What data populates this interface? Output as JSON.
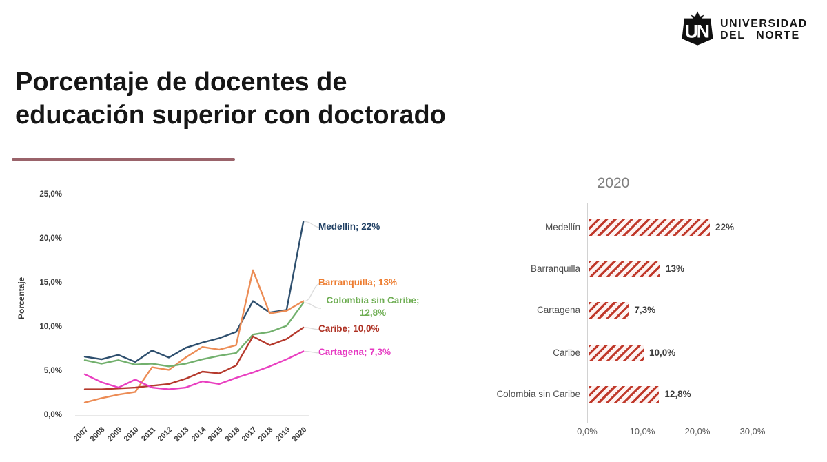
{
  "logo": {
    "monogram": "UN",
    "name_line1": "UNIVERSIDAD",
    "name_line2": "DEL NORTE"
  },
  "title": {
    "line1": "Porcentaje de docentes de",
    "line2": "educación superior con doctorado"
  },
  "accent_rule_color": "#9a636a",
  "chart_data": [
    {
      "type": "line",
      "name": "evolucion-doctorado",
      "ylabel": "Porcentaje",
      "ylim": [
        0,
        25
      ],
      "yticks": [
        "0,0%",
        "5,0%",
        "10,0%",
        "15,0%",
        "20,0%",
        "25,0%"
      ],
      "x": [
        2007,
        2008,
        2009,
        2010,
        2011,
        2012,
        2013,
        2014,
        2015,
        2016,
        2017,
        2018,
        2019,
        2020
      ],
      "grid": false,
      "series": [
        {
          "key": "medellin",
          "name": "Medellín",
          "label": "Medellín; 22%",
          "color": "#2e4f6e",
          "label_color": "#1f3f63",
          "values": [
            6.7,
            6.4,
            6.9,
            6.1,
            7.4,
            6.6,
            7.7,
            8.3,
            8.8,
            9.5,
            13.0,
            11.7,
            12.0,
            22.0
          ]
        },
        {
          "key": "barranquilla",
          "name": "Barranquilla",
          "label": "Barranquilla; 13%",
          "color": "#ec8c55",
          "label_color": "#ed7d31",
          "values": [
            1.5,
            2.0,
            2.4,
            2.7,
            5.5,
            5.2,
            6.6,
            7.8,
            7.5,
            8.0,
            16.5,
            11.6,
            11.9,
            13.0
          ]
        },
        {
          "key": "colombia-sin-caribe",
          "name": "Colombia sin Caribe",
          "label": "Colombia sin Caribe; 12,8%",
          "label_line1": "Colombia sin Caribe;",
          "label_line2": "12,8%",
          "color": "#72b06d",
          "label_color": "#6fae54",
          "values": [
            6.3,
            5.9,
            6.3,
            5.8,
            5.9,
            5.6,
            5.9,
            6.4,
            6.8,
            7.1,
            9.2,
            9.5,
            10.2,
            12.8
          ]
        },
        {
          "key": "caribe",
          "name": "Caribe",
          "label": "Caribe; 10,0%",
          "color": "#b5392c",
          "label_color": "#ae3123",
          "values": [
            3.0,
            3.0,
            3.1,
            3.2,
            3.4,
            3.6,
            4.2,
            5.0,
            4.8,
            5.7,
            9.0,
            8.0,
            8.7,
            10.0
          ]
        },
        {
          "key": "cartagena",
          "name": "Cartagena",
          "label": "Cartagena; 7,3%",
          "color": "#e93fc0",
          "label_color": "#e639c2",
          "values": [
            4.7,
            3.8,
            3.2,
            4.1,
            3.2,
            3.0,
            3.2,
            3.9,
            3.6,
            4.3,
            4.9,
            5.6,
            6.4,
            7.3
          ]
        }
      ]
    },
    {
      "type": "bar",
      "name": "doctorado-2020",
      "title": "2020",
      "orientation": "horizontal",
      "categories": [
        "Medellín",
        "Barranquilla",
        "Cartagena",
        "Caribe",
        "Colombia sin Caribe"
      ],
      "values": [
        22.0,
        13.0,
        7.3,
        10.0,
        12.8
      ],
      "value_labels": [
        "22%",
        "13%",
        "7,3%",
        "10,0%",
        "12,8%"
      ],
      "xlim": [
        0,
        30
      ],
      "xticks": [
        "0,0%",
        "10,0%",
        "20,0%",
        "30,0%"
      ],
      "hatch_color": "#c0392b",
      "grid": false
    }
  ]
}
